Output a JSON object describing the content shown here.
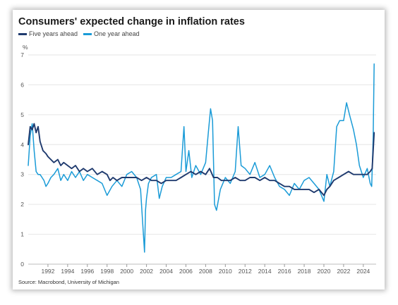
{
  "chart_data": {
    "type": "line",
    "title": "Consumers' expected change in inflation rates",
    "unit_label": "%",
    "source": "Source: Macrobond, University of Michigan",
    "ylim": [
      0,
      7
    ],
    "yticks": [
      0,
      1,
      2,
      3,
      4,
      5,
      6,
      7
    ],
    "xlim": [
      1990.0,
      2025.3
    ],
    "xticks": [
      1992,
      1994,
      1996,
      1998,
      2000,
      2002,
      2004,
      2006,
      2008,
      2010,
      2012,
      2014,
      2016,
      2018,
      2020,
      2022,
      2024
    ],
    "grid": "horizontal",
    "legend_position": "top-left",
    "series": [
      {
        "name": "Five years ahead",
        "color": "#1f3a6e",
        "x": [
          1990.0,
          1990.2,
          1990.4,
          1990.6,
          1990.8,
          1991.0,
          1991.2,
          1991.5,
          1991.8,
          1992.0,
          1992.3,
          1992.6,
          1993.0,
          1993.3,
          1993.6,
          1994.0,
          1994.4,
          1994.8,
          1995.2,
          1995.6,
          1996.0,
          1996.5,
          1997.0,
          1997.5,
          1998.0,
          1998.3,
          1998.6,
          1999.0,
          1999.5,
          2000.0,
          2000.5,
          2001.0,
          2001.5,
          2002.0,
          2002.5,
          2003.0,
          2003.5,
          2004.0,
          2004.5,
          2005.0,
          2005.5,
          2006.0,
          2006.5,
          2007.0,
          2007.5,
          2008.0,
          2008.4,
          2008.8,
          2009.2,
          2009.6,
          2010.0,
          2010.5,
          2011.0,
          2011.5,
          2012.0,
          2012.5,
          2013.0,
          2013.5,
          2014.0,
          2014.5,
          2015.0,
          2015.5,
          2016.0,
          2016.5,
          2017.0,
          2017.5,
          2018.0,
          2018.5,
          2019.0,
          2019.5,
          2020.0,
          2020.3,
          2020.6,
          2021.0,
          2021.5,
          2022.0,
          2022.5,
          2023.0,
          2023.5,
          2024.0,
          2024.4,
          2024.7,
          2024.9,
          2025.1
        ],
        "values": [
          4.0,
          4.6,
          4.5,
          4.7,
          4.4,
          4.6,
          4.1,
          3.8,
          3.7,
          3.6,
          3.5,
          3.4,
          3.5,
          3.3,
          3.4,
          3.3,
          3.2,
          3.3,
          3.1,
          3.2,
          3.1,
          3.2,
          3.0,
          3.1,
          3.0,
          2.8,
          2.9,
          2.8,
          2.9,
          2.9,
          2.9,
          2.9,
          2.8,
          2.9,
          2.8,
          2.8,
          2.7,
          2.8,
          2.8,
          2.8,
          2.9,
          3.0,
          3.1,
          3.0,
          3.1,
          3.0,
          3.2,
          2.9,
          2.9,
          2.8,
          2.8,
          2.8,
          2.9,
          2.8,
          2.8,
          2.9,
          2.9,
          2.8,
          2.9,
          2.8,
          2.8,
          2.7,
          2.6,
          2.6,
          2.5,
          2.5,
          2.5,
          2.5,
          2.4,
          2.5,
          2.3,
          2.5,
          2.6,
          2.8,
          2.9,
          3.0,
          3.1,
          3.0,
          3.0,
          3.0,
          3.0,
          3.1,
          3.2,
          4.4
        ]
      },
      {
        "name": "One year ahead",
        "color": "#1a9bd7",
        "x": [
          1990.0,
          1990.2,
          1990.4,
          1990.6,
          1990.8,
          1991.0,
          1991.2,
          1991.4,
          1991.6,
          1991.8,
          1992.0,
          1992.3,
          1992.6,
          1993.0,
          1993.3,
          1993.6,
          1994.0,
          1994.4,
          1994.8,
          1995.2,
          1995.6,
          1996.0,
          1996.5,
          1997.0,
          1997.5,
          1998.0,
          1998.5,
          1999.0,
          1999.5,
          2000.0,
          2000.5,
          2001.0,
          2001.4,
          2001.8,
          2001.9,
          2002.0,
          2002.2,
          2002.5,
          2003.0,
          2003.3,
          2003.6,
          2004.0,
          2004.5,
          2005.0,
          2005.5,
          2005.8,
          2006.0,
          2006.3,
          2006.6,
          2007.0,
          2007.5,
          2008.0,
          2008.3,
          2008.5,
          2008.7,
          2008.9,
          2009.1,
          2009.5,
          2010.0,
          2010.5,
          2011.0,
          2011.3,
          2011.6,
          2012.0,
          2012.5,
          2013.0,
          2013.5,
          2014.0,
          2014.5,
          2015.0,
          2015.5,
          2016.0,
          2016.5,
          2017.0,
          2017.5,
          2018.0,
          2018.5,
          2019.0,
          2019.5,
          2020.0,
          2020.3,
          2020.6,
          2021.0,
          2021.3,
          2021.6,
          2022.0,
          2022.3,
          2022.6,
          2023.0,
          2023.3,
          2023.6,
          2024.0,
          2024.4,
          2024.7,
          2024.85,
          2025.0,
          2025.1
        ],
        "values": [
          3.3,
          4.3,
          4.7,
          3.8,
          3.1,
          3.0,
          3.0,
          2.9,
          2.8,
          2.6,
          2.7,
          2.9,
          3.0,
          3.2,
          2.8,
          3.0,
          2.8,
          3.1,
          2.9,
          3.1,
          2.8,
          3.0,
          2.9,
          2.8,
          2.7,
          2.3,
          2.6,
          2.8,
          2.6,
          3.0,
          3.1,
          2.9,
          2.5,
          0.4,
          1.8,
          2.2,
          2.7,
          2.9,
          3.0,
          2.2,
          2.6,
          2.9,
          2.9,
          3.0,
          3.1,
          4.6,
          3.1,
          3.8,
          2.9,
          3.3,
          3.0,
          3.4,
          4.5,
          5.2,
          4.8,
          2.0,
          1.8,
          2.5,
          2.9,
          2.7,
          3.1,
          4.6,
          3.3,
          3.2,
          3.0,
          3.4,
          2.9,
          3.0,
          3.3,
          2.9,
          2.6,
          2.5,
          2.3,
          2.7,
          2.5,
          2.8,
          2.9,
          2.7,
          2.5,
          2.1,
          3.0,
          2.6,
          3.1,
          4.6,
          4.8,
          4.8,
          5.4,
          5.0,
          4.5,
          4.0,
          3.3,
          2.9,
          3.2,
          2.7,
          2.6,
          4.2,
          6.7
        ]
      }
    ]
  }
}
